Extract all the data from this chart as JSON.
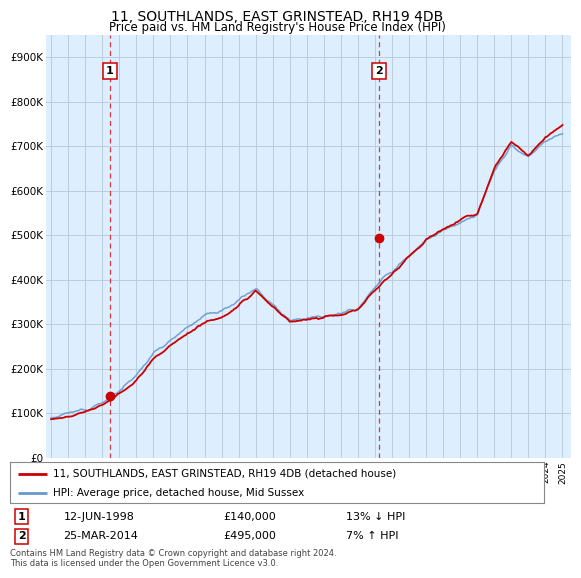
{
  "title": "11, SOUTHLANDS, EAST GRINSTEAD, RH19 4DB",
  "subtitle": "Price paid vs. HM Land Registry's House Price Index (HPI)",
  "ylim": [
    0,
    950000
  ],
  "yticks": [
    0,
    100000,
    200000,
    300000,
    400000,
    500000,
    600000,
    700000,
    800000,
    900000
  ],
  "ytick_labels": [
    "£0",
    "£100K",
    "£200K",
    "£300K",
    "£400K",
    "£500K",
    "£600K",
    "£700K",
    "£800K",
    "£900K"
  ],
  "sale1_date_num": 1998.45,
  "sale1_price": 140000,
  "sale1_label": "1",
  "sale2_date_num": 2014.22,
  "sale2_price": 495000,
  "sale2_label": "2",
  "legend_entry1": "11, SOUTHLANDS, EAST GRINSTEAD, RH19 4DB (detached house)",
  "legend_entry2": "HPI: Average price, detached house, Mid Sussex",
  "table_row1": [
    "1",
    "12-JUN-1998",
    "£140,000",
    "13% ↓ HPI"
  ],
  "table_row2": [
    "2",
    "25-MAR-2014",
    "£495,000",
    "7% ↑ HPI"
  ],
  "footer": "Contains HM Land Registry data © Crown copyright and database right 2024.\nThis data is licensed under the Open Government Licence v3.0.",
  "line_color_red": "#cc0000",
  "line_color_blue": "#6699cc",
  "background_color": "#ffffff",
  "chart_bg": "#ddeeff",
  "grid_color": "#bbccdd"
}
